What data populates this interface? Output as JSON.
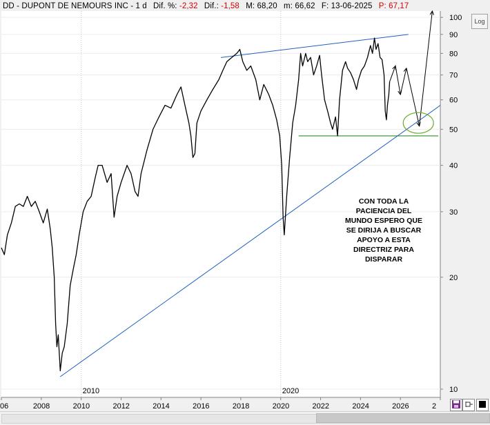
{
  "header": {
    "symbol": "DD - DUPONT DE NEMOURS INC - 1 d",
    "dif_pct_label": "Dif. %:",
    "dif_pct_value": "-2,32",
    "dif_label": "Dif.:",
    "dif_value": "-1,58",
    "max_label": "M:",
    "max_value": "68,20",
    "min_label": "m:",
    "min_value": "66,62",
    "date_label": "F:",
    "date_value": "13-06-2025",
    "price_label": "P:",
    "price_value": "67,17",
    "neg_color": "#d40000"
  },
  "log_button": "Log",
  "annotation": [
    "CON TODA LA",
    "PACIENCIA DEL",
    "MUNDO ESPERO QUE",
    "SE DIRIJA A BUSCAR",
    "APOYO A ESTA",
    "DIRECTRIZ PARA",
    "DISPARAR"
  ],
  "toolbar": {
    "save_icon": "save-icon",
    "pin_icon": "pin-icon",
    "square_icon": "square-icon"
  },
  "chart_data": {
    "type": "line",
    "yscale": "log",
    "ylim": [
      9.5,
      104
    ],
    "xlim": [
      2006.0,
      2028.0
    ],
    "y_ticks": [
      10,
      20,
      30,
      40,
      50,
      60,
      70,
      80,
      90,
      100
    ],
    "x_tick_labels": [
      "06",
      "2008",
      "2010",
      "2012",
      "2014",
      "2016",
      "2018",
      "2020",
      "2022",
      "2024",
      "2026",
      "2"
    ],
    "period_labels": [
      "2010",
      "2020"
    ],
    "colors": {
      "price": "#000000",
      "trendline": "#1f5fbf",
      "support": "#2e8b2e",
      "circle": "#6aaa2a",
      "projection": "#000000"
    },
    "series": [
      {
        "points": [
          [
            2006.0,
            24
          ],
          [
            2006.15,
            23
          ],
          [
            2006.3,
            26
          ],
          [
            2006.5,
            28
          ],
          [
            2006.7,
            31
          ],
          [
            2006.9,
            31.5
          ],
          [
            2007.1,
            31
          ],
          [
            2007.3,
            33
          ],
          [
            2007.5,
            31
          ],
          [
            2007.7,
            32
          ],
          [
            2007.9,
            30
          ],
          [
            2008.1,
            28
          ],
          [
            2008.3,
            30.5
          ],
          [
            2008.45,
            27
          ],
          [
            2008.55,
            24
          ],
          [
            2008.65,
            20
          ],
          [
            2008.72,
            15
          ],
          [
            2008.78,
            13
          ],
          [
            2008.85,
            14
          ],
          [
            2008.95,
            11.2
          ],
          [
            2009.05,
            12.5
          ],
          [
            2009.15,
            13
          ],
          [
            2009.3,
            15
          ],
          [
            2009.45,
            19
          ],
          [
            2009.6,
            21
          ],
          [
            2009.75,
            23
          ],
          [
            2009.9,
            26
          ],
          [
            2010.1,
            30
          ],
          [
            2010.3,
            32
          ],
          [
            2010.5,
            33
          ],
          [
            2010.7,
            37
          ],
          [
            2010.85,
            40
          ],
          [
            2011.05,
            40
          ],
          [
            2011.3,
            36
          ],
          [
            2011.5,
            38
          ],
          [
            2011.65,
            29
          ],
          [
            2011.8,
            33
          ],
          [
            2012.0,
            36
          ],
          [
            2012.3,
            40
          ],
          [
            2012.5,
            38
          ],
          [
            2012.7,
            34
          ],
          [
            2012.85,
            33
          ],
          [
            2013.0,
            38
          ],
          [
            2013.3,
            44
          ],
          [
            2013.6,
            50
          ],
          [
            2013.9,
            54
          ],
          [
            2014.2,
            58
          ],
          [
            2014.5,
            57
          ],
          [
            2014.8,
            62
          ],
          [
            2015.0,
            65
          ],
          [
            2015.2,
            58
          ],
          [
            2015.4,
            52
          ],
          [
            2015.5,
            48
          ],
          [
            2015.6,
            42
          ],
          [
            2015.7,
            43
          ],
          [
            2015.8,
            52
          ],
          [
            2016.0,
            56
          ],
          [
            2016.3,
            60
          ],
          [
            2016.6,
            64
          ],
          [
            2016.9,
            68
          ],
          [
            2017.1,
            72
          ],
          [
            2017.3,
            76
          ],
          [
            2017.55,
            78
          ],
          [
            2017.8,
            80
          ],
          [
            2017.95,
            82
          ],
          [
            2018.1,
            76
          ],
          [
            2018.3,
            72
          ],
          [
            2018.5,
            74
          ],
          [
            2018.75,
            68
          ],
          [
            2018.95,
            60
          ],
          [
            2019.15,
            66
          ],
          [
            2019.4,
            62
          ],
          [
            2019.6,
            58
          ],
          [
            2019.8,
            53
          ],
          [
            2019.95,
            48
          ],
          [
            2020.05,
            40
          ],
          [
            2020.12,
            29
          ],
          [
            2020.18,
            26
          ],
          [
            2020.3,
            33
          ],
          [
            2020.45,
            42
          ],
          [
            2020.6,
            52
          ],
          [
            2020.75,
            58
          ],
          [
            2020.9,
            68
          ],
          [
            2021.0,
            80
          ],
          [
            2021.1,
            74
          ],
          [
            2021.25,
            80
          ],
          [
            2021.35,
            76
          ],
          [
            2021.5,
            78
          ],
          [
            2021.65,
            70
          ],
          [
            2021.8,
            74
          ],
          [
            2021.95,
            79
          ],
          [
            2022.05,
            70
          ],
          [
            2022.2,
            60
          ],
          [
            2022.35,
            56
          ],
          [
            2022.5,
            52
          ],
          [
            2022.6,
            50
          ],
          [
            2022.75,
            54
          ],
          [
            2022.85,
            48
          ],
          [
            2022.95,
            60
          ],
          [
            2023.1,
            72
          ],
          [
            2023.25,
            76
          ],
          [
            2023.35,
            73
          ],
          [
            2023.5,
            71
          ],
          [
            2023.65,
            68
          ],
          [
            2023.8,
            64
          ],
          [
            2023.9,
            68
          ],
          [
            2024.05,
            72
          ],
          [
            2024.2,
            74
          ],
          [
            2024.35,
            78
          ],
          [
            2024.5,
            84
          ],
          [
            2024.6,
            80
          ],
          [
            2024.7,
            88
          ],
          [
            2024.78,
            82
          ],
          [
            2024.88,
            85
          ],
          [
            2024.98,
            78
          ],
          [
            2025.08,
            77
          ],
          [
            2025.18,
            70
          ],
          [
            2025.24,
            56
          ],
          [
            2025.3,
            53
          ],
          [
            2025.35,
            58
          ],
          [
            2025.42,
            62
          ],
          [
            2025.46,
            67.17
          ]
        ]
      }
    ],
    "trendline": [
      [
        2008.95,
        10.8
      ],
      [
        2028.0,
        58
      ]
    ],
    "upper_trendline": [
      [
        2017.0,
        78
      ],
      [
        2026.4,
        90
      ]
    ],
    "support_level": {
      "y": 48,
      "x_start": 2020.9,
      "x_end": 2027.9
    },
    "projection_path": [
      [
        2025.46,
        67.17
      ],
      [
        2025.75,
        74
      ],
      [
        2026.0,
        62
      ],
      [
        2026.3,
        73
      ],
      [
        2026.95,
        51
      ],
      [
        2027.6,
        104
      ]
    ],
    "target_circle": {
      "x": 2026.9,
      "y": 52
    }
  }
}
